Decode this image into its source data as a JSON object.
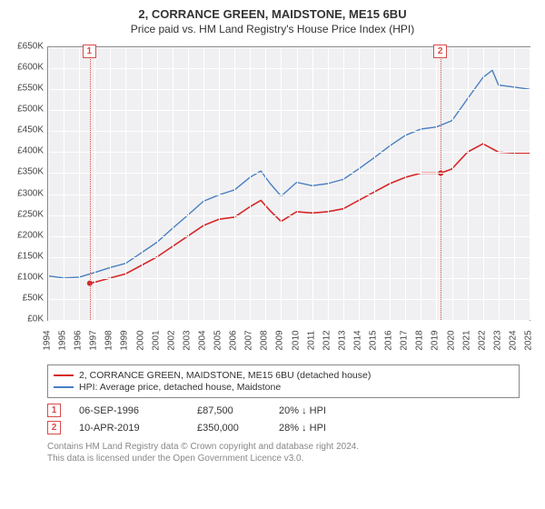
{
  "title": "2, CORRANCE GREEN, MAIDSTONE, ME15 6BU",
  "subtitle": "Price paid vs. HM Land Registry's House Price Index (HPI)",
  "chart": {
    "type": "line",
    "background_color": "#f0f0f2",
    "grid_color": "#ffffff",
    "axis_color": "#888888",
    "x_axis": {
      "years": [
        1994,
        1995,
        1996,
        1997,
        1998,
        1999,
        2000,
        2001,
        2002,
        2003,
        2004,
        2005,
        2006,
        2007,
        2008,
        2009,
        2010,
        2011,
        2012,
        2013,
        2014,
        2015,
        2016,
        2017,
        2018,
        2019,
        2020,
        2021,
        2022,
        2023,
        2024,
        2025
      ],
      "label_fontsize": 10
    },
    "y_axis": {
      "min": 0,
      "max": 650000,
      "tick_step": 50000,
      "label_fontsize": 10,
      "prefix": "£",
      "suffix": "K",
      "divide": 1000
    },
    "series": [
      {
        "name": "property",
        "label": "2, CORRANCE GREEN, MAIDSTONE, ME15 6BU (detached house)",
        "color": "#d62728",
        "width": 1.6,
        "points": [
          [
            1996.68,
            87500
          ],
          [
            1997,
            90000
          ],
          [
            1998,
            100000
          ],
          [
            1999,
            110000
          ],
          [
            2000,
            130000
          ],
          [
            2001,
            150000
          ],
          [
            2002,
            175000
          ],
          [
            2003,
            200000
          ],
          [
            2004,
            225000
          ],
          [
            2005,
            240000
          ],
          [
            2006,
            245000
          ],
          [
            2007,
            270000
          ],
          [
            2007.7,
            285000
          ],
          [
            2008.3,
            260000
          ],
          [
            2009,
            235000
          ],
          [
            2010,
            258000
          ],
          [
            2011,
            255000
          ],
          [
            2012,
            258000
          ],
          [
            2013,
            265000
          ],
          [
            2014,
            285000
          ],
          [
            2015,
            305000
          ],
          [
            2016,
            325000
          ],
          [
            2017,
            340000
          ],
          [
            2018,
            350000
          ],
          [
            2019.28,
            350000
          ],
          [
            2020,
            360000
          ],
          [
            2021,
            400000
          ],
          [
            2022,
            420000
          ],
          [
            2023,
            400000
          ],
          [
            2024,
            398000
          ],
          [
            2025,
            398000
          ]
        ]
      },
      {
        "name": "hpi",
        "label": "HPI: Average price, detached house, Maidstone",
        "color": "#4a7fc1",
        "width": 1.4,
        "points": [
          [
            1994,
            105000
          ],
          [
            1995,
            100000
          ],
          [
            1996,
            102000
          ],
          [
            1997,
            113000
          ],
          [
            1998,
            125000
          ],
          [
            1999,
            135000
          ],
          [
            2000,
            160000
          ],
          [
            2001,
            185000
          ],
          [
            2002,
            218000
          ],
          [
            2003,
            250000
          ],
          [
            2004,
            283000
          ],
          [
            2005,
            298000
          ],
          [
            2006,
            310000
          ],
          [
            2007,
            340000
          ],
          [
            2007.7,
            355000
          ],
          [
            2008.3,
            325000
          ],
          [
            2009,
            295000
          ],
          [
            2010,
            328000
          ],
          [
            2011,
            320000
          ],
          [
            2012,
            325000
          ],
          [
            2013,
            335000
          ],
          [
            2014,
            360000
          ],
          [
            2015,
            387000
          ],
          [
            2016,
            415000
          ],
          [
            2017,
            440000
          ],
          [
            2018,
            455000
          ],
          [
            2019,
            460000
          ],
          [
            2020,
            475000
          ],
          [
            2021,
            527000
          ],
          [
            2022,
            578000
          ],
          [
            2022.6,
            595000
          ],
          [
            2023,
            560000
          ],
          [
            2024,
            555000
          ],
          [
            2025,
            550000
          ]
        ]
      }
    ],
    "markers": [
      {
        "id": "1",
        "x": 1996.68,
        "y": 87500
      },
      {
        "id": "2",
        "x": 2019.28,
        "y": 350000
      }
    ],
    "marker_color": "#d94a4a"
  },
  "legend": {
    "border_color": "#888888",
    "items": [
      {
        "color": "#d62728",
        "label": "2, CORRANCE GREEN, MAIDSTONE, ME15 6BU (detached house)"
      },
      {
        "color": "#4a7fc1",
        "label": "HPI: Average price, detached house, Maidstone"
      }
    ]
  },
  "sales": [
    {
      "id": "1",
      "date": "06-SEP-1996",
      "price": "£87,500",
      "diff": "20% ↓ HPI"
    },
    {
      "id": "2",
      "date": "10-APR-2019",
      "price": "£350,000",
      "diff": "28% ↓ HPI"
    }
  ],
  "footer_line1": "Contains HM Land Registry data © Crown copyright and database right 2024.",
  "footer_line2": "This data is licensed under the Open Government Licence v3.0."
}
